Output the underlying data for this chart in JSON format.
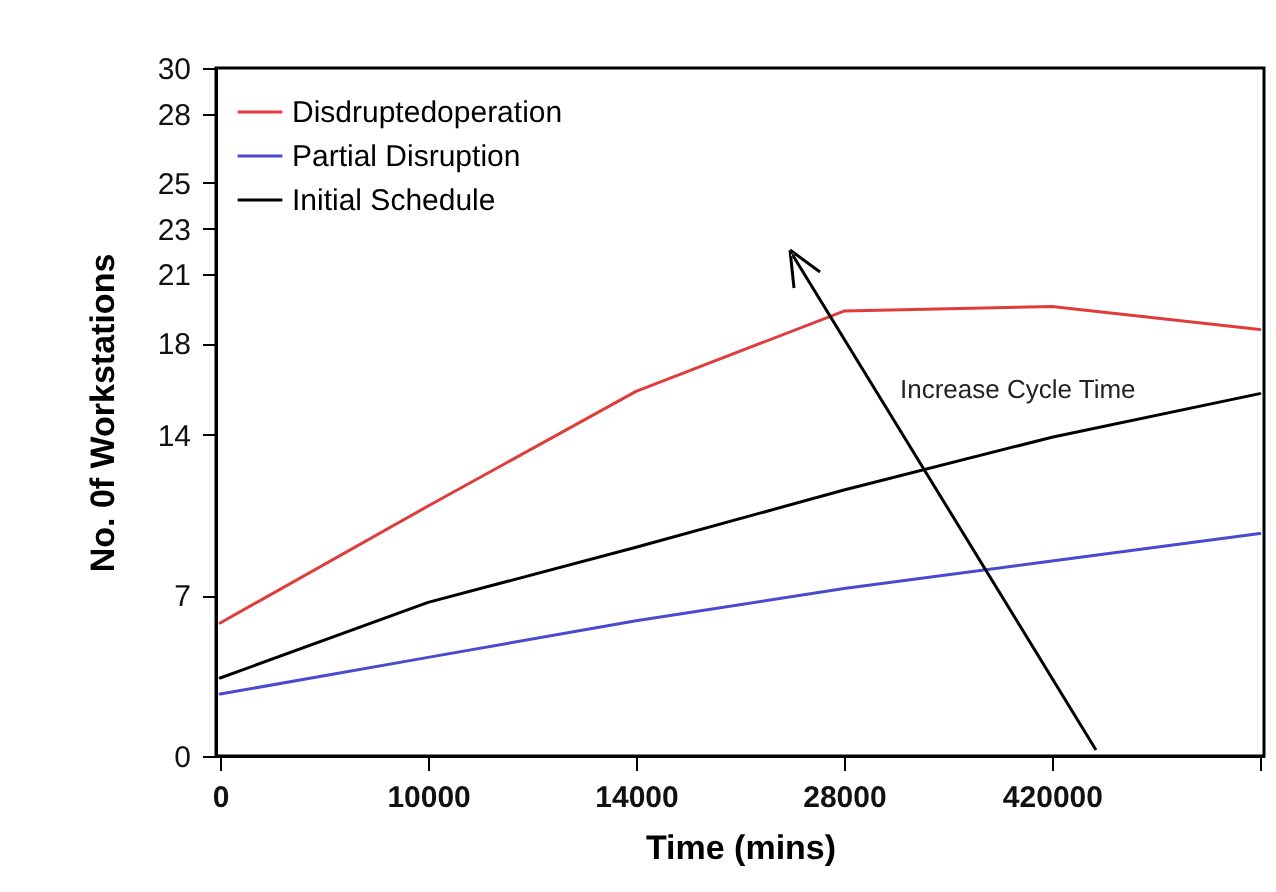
{
  "chart_data": {
    "type": "line",
    "xlabel": "Time (mins)",
    "ylabel": "No. 0f Workstations",
    "categories": [
      "0",
      "10000",
      "14000",
      "28000",
      "420000",
      null
    ],
    "ylim": [
      0,
      30
    ],
    "yticks": [
      0,
      7,
      14,
      18,
      21,
      23,
      25,
      28,
      30
    ],
    "legend": "top left",
    "annotations": [
      "Increase   Cycle Time"
    ],
    "series": [
      {
        "name": "Disdruptedoperation",
        "color": "#e03c3c",
        "values": [
          5.8,
          10.9,
          15.9,
          19.4,
          19.6,
          18.6
        ]
      },
      {
        "name": "Partial Disruption",
        "color": "#4a4ad0",
        "values": [
          2.7,
          4.3,
          5.9,
          7.3,
          8.5,
          9.7
        ]
      },
      {
        "name": "Initial Schedule",
        "color": "#000000",
        "values": [
          3.4,
          6.7,
          9.1,
          11.6,
          13.9,
          15.8
        ]
      }
    ]
  }
}
